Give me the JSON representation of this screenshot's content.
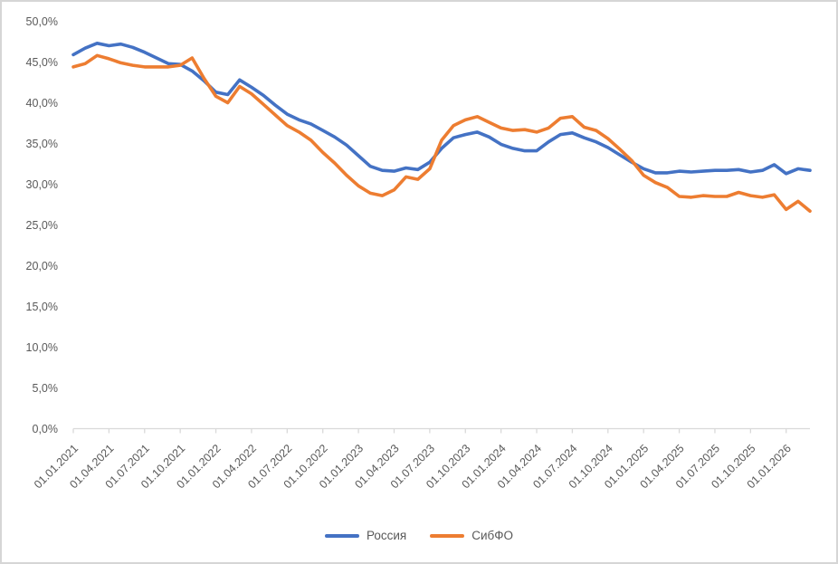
{
  "colors": {
    "series_russia": "#4472C4",
    "series_sibfo": "#ED7D31",
    "axis_line": "#d9d9d9",
    "tick_text": "#595959",
    "border": "#d6d6d6"
  },
  "chart_data": {
    "type": "line",
    "title": "",
    "xlabel": "",
    "ylabel": "",
    "ylim": [
      0,
      50
    ],
    "y_tick_step": 5,
    "y_tick_labels": [
      "0,0%",
      "5,0%",
      "10,0%",
      "15,0%",
      "20,0%",
      "25,0%",
      "30,0%",
      "35,0%",
      "40,0%",
      "45,0%",
      "50,0%"
    ],
    "x_unit": "monthly",
    "months_per_label": 3,
    "x_labels": [
      "01.01.2021",
      "01.04.2021",
      "01.07.2021",
      "01.10.2021",
      "01.01.2022",
      "01.04.2022",
      "01.07.2022",
      "01.10.2022",
      "01.01.2023",
      "01.04.2023",
      "01.07.2023",
      "01.10.2023",
      "01.01.2024",
      "01.04.2024",
      "01.07.2024",
      "01.10.2024",
      "01.01.2025",
      "01.04.2025",
      "01.07.2025",
      "01.10.2025",
      "01.01.2026"
    ],
    "grid": false,
    "legend_position": "bottom",
    "series": [
      {
        "name": "Россия",
        "color": "#4472C4",
        "values": [
          45.9,
          46.7,
          47.3,
          47.0,
          47.2,
          46.8,
          46.2,
          45.5,
          44.8,
          44.7,
          43.9,
          42.7,
          41.3,
          41.0,
          42.8,
          41.9,
          40.9,
          39.7,
          38.6,
          37.9,
          37.4,
          36.6,
          35.8,
          34.8,
          33.5,
          32.2,
          31.7,
          31.6,
          32.0,
          31.8,
          32.7,
          34.4,
          35.7,
          36.1,
          36.4,
          35.8,
          34.9,
          34.4,
          34.1,
          34.1,
          35.2,
          36.1,
          36.3,
          35.7,
          35.2,
          34.5,
          33.6,
          32.7,
          31.9,
          31.4,
          31.4,
          31.6,
          31.5,
          31.6,
          31.7,
          31.7,
          31.8,
          31.5,
          31.7,
          32.4,
          31.3,
          31.9,
          31.7
        ]
      },
      {
        "name": "СибФО",
        "color": "#ED7D31",
        "values": [
          44.4,
          44.8,
          45.8,
          45.4,
          44.9,
          44.6,
          44.4,
          44.4,
          44.4,
          44.6,
          45.5,
          43.0,
          40.8,
          40.0,
          42.0,
          41.1,
          39.8,
          38.5,
          37.2,
          36.4,
          35.4,
          33.9,
          32.6,
          31.1,
          29.8,
          28.9,
          28.6,
          29.3,
          30.9,
          30.6,
          31.9,
          35.4,
          37.2,
          37.9,
          38.3,
          37.6,
          36.9,
          36.6,
          36.7,
          36.4,
          36.9,
          38.1,
          38.3,
          37.0,
          36.6,
          35.6,
          34.3,
          32.9,
          31.1,
          30.2,
          29.6,
          28.5,
          28.4,
          28.6,
          28.5,
          28.5,
          29.0,
          28.6,
          28.4,
          28.7,
          26.9,
          27.9,
          26.7
        ]
      }
    ]
  },
  "legend": {
    "items": [
      {
        "label": "Россия"
      },
      {
        "label": "СибФО"
      }
    ]
  }
}
